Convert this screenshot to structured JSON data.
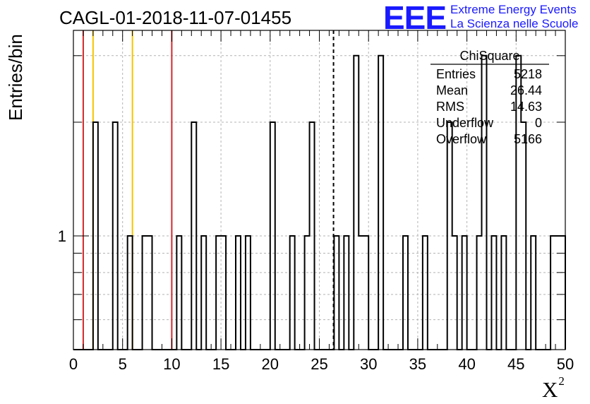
{
  "page": {
    "title": "CAGL-01-2018-11-07-01455",
    "logo_text": "EEE",
    "logo_line1": "Extreme Energy Events",
    "logo_line2": "La Scienza nelle Scuole",
    "colors": {
      "logo": "#1a1aff",
      "red_marker": "#d42a2a",
      "yellow_marker": "#f5c400"
    }
  },
  "stats_box": {
    "title": "ChiSquare",
    "rows": [
      {
        "label": "Entries",
        "value": "5218"
      },
      {
        "label": "Mean",
        "value": "26.44"
      },
      {
        "label": "RMS",
        "value": "14.63"
      },
      {
        "label": "Underflow",
        "value": "0"
      },
      {
        "label": "Overflow",
        "value": "5166"
      }
    ]
  },
  "chart_data": {
    "type": "bar",
    "style": "step-histogram",
    "ylabel": "Entries/bin",
    "xlabel": "X",
    "xlabel_superscript": "2",
    "xlim": [
      0,
      50
    ],
    "ylim": [
      0.5,
      3.5
    ],
    "y_scale": "log",
    "grid": true,
    "x_ticks": [
      0,
      5,
      10,
      15,
      20,
      25,
      30,
      35,
      40,
      45,
      50
    ],
    "y_tick_labels": [
      {
        "value": 1,
        "label": "1"
      }
    ],
    "bin_width": 0.5,
    "bins": [
      {
        "x": 2.0,
        "count": 2
      },
      {
        "x": 4.0,
        "count": 2
      },
      {
        "x": 5.5,
        "count": 1
      },
      {
        "x": 7.0,
        "count": 1
      },
      {
        "x": 7.5,
        "count": 1
      },
      {
        "x": 10.5,
        "count": 1
      },
      {
        "x": 12.0,
        "count": 2
      },
      {
        "x": 13.0,
        "count": 1
      },
      {
        "x": 14.5,
        "count": 1
      },
      {
        "x": 15.0,
        "count": 1
      },
      {
        "x": 16.5,
        "count": 1
      },
      {
        "x": 17.5,
        "count": 1
      },
      {
        "x": 20.0,
        "count": 2
      },
      {
        "x": 22.0,
        "count": 1
      },
      {
        "x": 23.5,
        "count": 1
      },
      {
        "x": 24.0,
        "count": 2
      },
      {
        "x": 26.5,
        "count": 1
      },
      {
        "x": 27.5,
        "count": 1
      },
      {
        "x": 28.5,
        "count": 3
      },
      {
        "x": 29.0,
        "count": 1
      },
      {
        "x": 29.5,
        "count": 1
      },
      {
        "x": 31.0,
        "count": 3
      },
      {
        "x": 33.5,
        "count": 1
      },
      {
        "x": 35.5,
        "count": 1
      },
      {
        "x": 38.0,
        "count": 2
      },
      {
        "x": 38.5,
        "count": 1
      },
      {
        "x": 39.5,
        "count": 1
      },
      {
        "x": 41.0,
        "count": 1
      },
      {
        "x": 41.5,
        "count": 3
      },
      {
        "x": 42.5,
        "count": 1
      },
      {
        "x": 43.5,
        "count": 1
      },
      {
        "x": 45.0,
        "count": 3
      },
      {
        "x": 45.5,
        "count": 2
      },
      {
        "x": 46.5,
        "count": 1
      },
      {
        "x": 48.5,
        "count": 1
      },
      {
        "x": 49.0,
        "count": 1
      },
      {
        "x": 49.5,
        "count": 1
      }
    ],
    "vertical_markers": [
      {
        "x": 1.0,
        "color": "#d42a2a",
        "style": "solid"
      },
      {
        "x": 2.0,
        "color": "#f5c400",
        "style": "solid"
      },
      {
        "x": 6.0,
        "color": "#f5c400",
        "style": "solid"
      },
      {
        "x": 10.0,
        "color": "#d42a2a",
        "style": "solid"
      },
      {
        "x": 26.44,
        "color": "#000000",
        "style": "dashed"
      }
    ]
  }
}
